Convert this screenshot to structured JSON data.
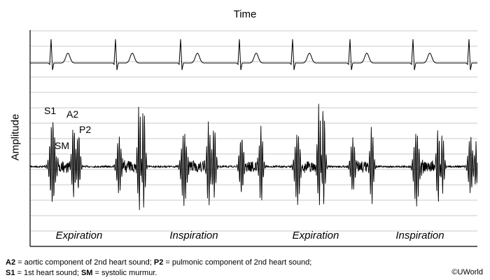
{
  "header": {
    "x_axis_label": "Time"
  },
  "y_axis_label": "Amplitude",
  "sound_labels": {
    "s1": "S1",
    "a2": "A2",
    "p2": "P2",
    "sm": "SM"
  },
  "phases": [
    "Expiration",
    "Inspiration",
    "Expiration",
    "Inspiration"
  ],
  "footnote": {
    "line1_a2_term": "A2",
    "line1_a2_def": " = aortic component of 2nd heart sound; ",
    "line1_p2_term": "P2",
    "line1_p2_def": " = pulmonic component of 2nd heart sound;",
    "line2_s1_term": "S1",
    "line2_s1_def": " = 1st heart sound; ",
    "line2_sm_term": "SM",
    "line2_sm_def": " = systolic murmur."
  },
  "copyright": "©UWorld",
  "colors": {
    "trace": "#000000",
    "grid": "#c8c8c8"
  }
}
